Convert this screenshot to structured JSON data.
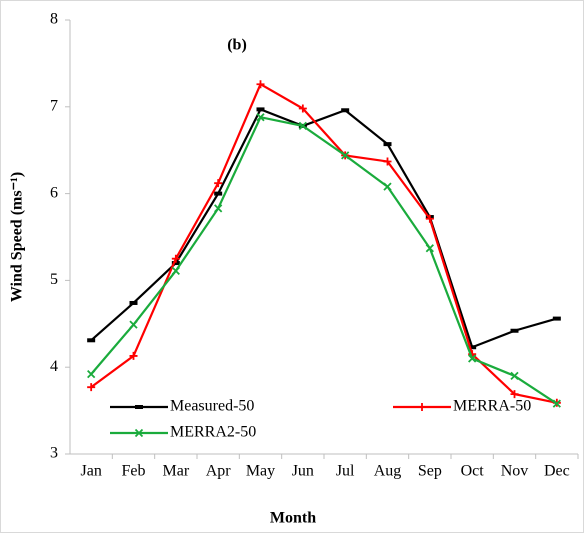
{
  "chart_data": {
    "type": "line",
    "title": "(b)",
    "x_label": "Month",
    "y_label": "Wind Speed (ms⁻¹)",
    "categories": [
      "Jan",
      "Feb",
      "Mar",
      "Apr",
      "May",
      "Jun",
      "Jul",
      "Aug",
      "Sep",
      "Oct",
      "Nov",
      "Dec"
    ],
    "ylim": [
      3,
      8
    ],
    "yticks": [
      3,
      4,
      5,
      6,
      7,
      8
    ],
    "grid": false,
    "legend": "lower left",
    "series": [
      {
        "name": "Measured-50",
        "color": "#000000",
        "marker": "-",
        "values": [
          4.31,
          4.74,
          5.2,
          6.0,
          6.97,
          6.78,
          6.96,
          6.57,
          5.73,
          4.23,
          4.42,
          4.56
        ]
      },
      {
        "name": "MERRA-50",
        "color": "#ff0000",
        "marker": "+",
        "values": [
          3.77,
          4.13,
          5.25,
          6.12,
          7.26,
          6.98,
          6.44,
          6.37,
          5.71,
          4.15,
          3.69,
          3.59
        ]
      },
      {
        "name": "MERRA2-50",
        "color": "#1aab3c",
        "marker": "x",
        "values": [
          3.92,
          4.49,
          5.11,
          5.83,
          6.88,
          6.78,
          6.44,
          6.08,
          5.37,
          4.1,
          3.9,
          3.58
        ]
      }
    ]
  }
}
